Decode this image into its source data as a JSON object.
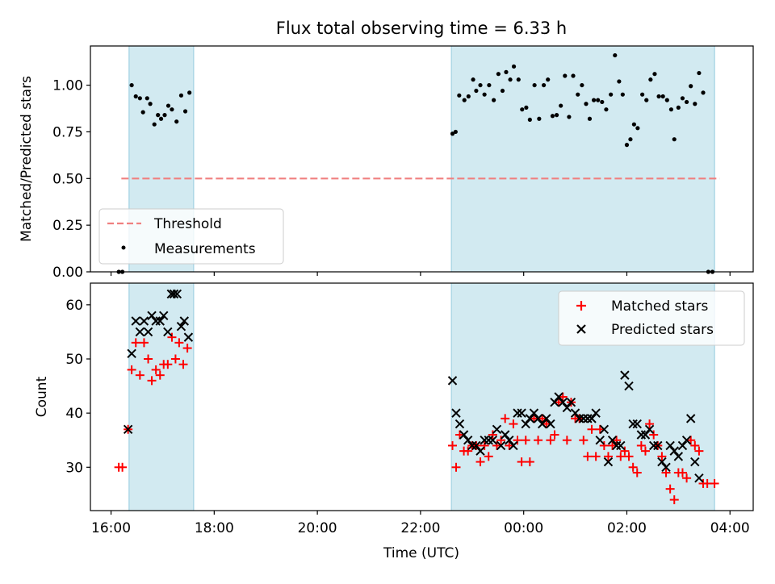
{
  "title": "Flux total observing time = 6.33 h",
  "xlabel": "Time (UTC)",
  "x_ticks": [
    "16:00",
    "18:00",
    "20:00",
    "22:00",
    "00:00",
    "02:00",
    "04:00"
  ],
  "top": {
    "ylabel": "Matched/Predicted stars",
    "y_ticks": [
      "0.00",
      "0.25",
      "0.50",
      "0.75",
      "1.00"
    ],
    "legend": [
      "Threshold",
      "Measurements"
    ]
  },
  "bottom": {
    "ylabel": "Count",
    "y_ticks": [
      "30",
      "40",
      "50",
      "60"
    ],
    "legend": [
      "Matched stars",
      "Predicted stars"
    ]
  },
  "colors": {
    "shade": "#add8e6",
    "threshold": "#f08080",
    "matched": "#ff0000",
    "predicted": "#000000",
    "measure": "#000000"
  },
  "chart_data": [
    {
      "type": "scatter",
      "title": "Flux total observing time = 6.33 h",
      "xlabel": "",
      "ylabel": "Matched/Predicted stars",
      "x_unit": "hours since 16:00 UTC",
      "xlim": [
        -0.4,
        12.45
      ],
      "ylim": [
        0,
        1.21
      ],
      "shaded_intervals": [
        [
          0.35,
          1.6
        ],
        [
          6.6,
          11.7
        ]
      ],
      "threshold": {
        "x": [
          0.2,
          11.8
        ],
        "y": 0.5
      },
      "series": [
        {
          "name": "Measurements",
          "points": [
            [
              0.15,
              0.0
            ],
            [
              0.22,
              0.0
            ],
            [
              0.4,
              1.0
            ],
            [
              0.48,
              0.94
            ],
            [
              0.56,
              0.93
            ],
            [
              0.62,
              0.855
            ],
            [
              0.7,
              0.93
            ],
            [
              0.76,
              0.9
            ],
            [
              0.84,
              0.79
            ],
            [
              0.91,
              0.84
            ],
            [
              0.97,
              0.82
            ],
            [
              1.04,
              0.84
            ],
            [
              1.11,
              0.89
            ],
            [
              1.18,
              0.87
            ],
            [
              1.27,
              0.805
            ],
            [
              1.36,
              0.945
            ],
            [
              1.44,
              0.86
            ],
            [
              1.52,
              0.96
            ],
            [
              6.62,
              0.74
            ],
            [
              6.68,
              0.75
            ],
            [
              6.75,
              0.945
            ],
            [
              6.85,
              0.92
            ],
            [
              6.93,
              0.94
            ],
            [
              7.02,
              1.03
            ],
            [
              7.08,
              0.97
            ],
            [
              7.16,
              1.0
            ],
            [
              7.24,
              0.95
            ],
            [
              7.33,
              1.0
            ],
            [
              7.42,
              0.92
            ],
            [
              7.51,
              1.06
            ],
            [
              7.59,
              0.97
            ],
            [
              7.66,
              1.07
            ],
            [
              7.74,
              1.03
            ],
            [
              7.81,
              1.1
            ],
            [
              7.9,
              1.03
            ],
            [
              7.97,
              0.87
            ],
            [
              8.05,
              0.88
            ],
            [
              8.12,
              0.815
            ],
            [
              8.21,
              1.0
            ],
            [
              8.3,
              0.82
            ],
            [
              8.39,
              1.0
            ],
            [
              8.47,
              1.03
            ],
            [
              8.56,
              0.835
            ],
            [
              8.64,
              0.84
            ],
            [
              8.72,
              0.89
            ],
            [
              8.8,
              1.05
            ],
            [
              8.88,
              0.83
            ],
            [
              8.96,
              1.05
            ],
            [
              9.05,
              0.95
            ],
            [
              9.13,
              1.0
            ],
            [
              9.21,
              0.9
            ],
            [
              9.28,
              0.82
            ],
            [
              9.36,
              0.92
            ],
            [
              9.44,
              0.92
            ],
            [
              9.52,
              0.91
            ],
            [
              9.6,
              0.87
            ],
            [
              9.69,
              0.95
            ],
            [
              9.77,
              1.16
            ],
            [
              9.85,
              1.02
            ],
            [
              9.92,
              0.95
            ],
            [
              10.0,
              0.68
            ],
            [
              10.07,
              0.71
            ],
            [
              10.14,
              0.79
            ],
            [
              10.21,
              0.77
            ],
            [
              10.3,
              0.95
            ],
            [
              10.38,
              0.92
            ],
            [
              10.46,
              1.03
            ],
            [
              10.54,
              1.06
            ],
            [
              10.62,
              0.94
            ],
            [
              10.7,
              0.94
            ],
            [
              10.78,
              0.92
            ],
            [
              10.86,
              0.87
            ],
            [
              10.92,
              0.71
            ],
            [
              11.0,
              0.88
            ],
            [
              11.08,
              0.93
            ],
            [
              11.16,
              0.91
            ],
            [
              11.24,
              0.995
            ],
            [
              11.32,
              0.9
            ],
            [
              11.4,
              1.065
            ],
            [
              11.48,
              0.96
            ],
            [
              11.58,
              0.0
            ],
            [
              11.66,
              0.0
            ]
          ]
        }
      ]
    },
    {
      "type": "scatter",
      "title": "",
      "xlabel": "Time (UTC)",
      "ylabel": "Count",
      "x_unit": "hours since 16:00 UTC",
      "xlim": [
        -0.4,
        12.45
      ],
      "ylim": [
        22,
        64
      ],
      "shaded_intervals": [
        [
          0.35,
          1.6
        ],
        [
          6.6,
          11.7
        ]
      ],
      "series": [
        {
          "name": "Matched stars",
          "points": [
            [
              0.15,
              30
            ],
            [
              0.22,
              30
            ],
            [
              0.33,
              37
            ],
            [
              0.4,
              48
            ],
            [
              0.48,
              53
            ],
            [
              0.56,
              47
            ],
            [
              0.64,
              53
            ],
            [
              0.72,
              50
            ],
            [
              0.79,
              46
            ],
            [
              0.87,
              48
            ],
            [
              0.95,
              47
            ],
            [
              1.02,
              49
            ],
            [
              1.1,
              49
            ],
            [
              1.18,
              54
            ],
            [
              1.25,
              50
            ],
            [
              1.32,
              53
            ],
            [
              1.4,
              49
            ],
            [
              1.48,
              52
            ],
            [
              6.62,
              34
            ],
            [
              6.69,
              30
            ],
            [
              6.76,
              36
            ],
            [
              6.84,
              33
            ],
            [
              6.92,
              33
            ],
            [
              7.0,
              34
            ],
            [
              7.08,
              34
            ],
            [
              7.16,
              31
            ],
            [
              7.24,
              34
            ],
            [
              7.32,
              32
            ],
            [
              7.4,
              36
            ],
            [
              7.48,
              34
            ],
            [
              7.56,
              35
            ],
            [
              7.64,
              39
            ],
            [
              7.72,
              34
            ],
            [
              7.8,
              38
            ],
            [
              7.88,
              35
            ],
            [
              7.96,
              31
            ],
            [
              8.04,
              35
            ],
            [
              8.12,
              31
            ],
            [
              8.2,
              39
            ],
            [
              8.28,
              35
            ],
            [
              8.36,
              39
            ],
            [
              8.44,
              38
            ],
            [
              8.52,
              35
            ],
            [
              8.6,
              36
            ],
            [
              8.68,
              42
            ],
            [
              8.76,
              43
            ],
            [
              8.84,
              35
            ],
            [
              8.92,
              42
            ],
            [
              9.0,
              39
            ],
            [
              9.08,
              39
            ],
            [
              9.16,
              35
            ],
            [
              9.24,
              32
            ],
            [
              9.32,
              37
            ],
            [
              9.4,
              32
            ],
            [
              9.48,
              37
            ],
            [
              9.56,
              34
            ],
            [
              9.64,
              32
            ],
            [
              9.72,
              34
            ],
            [
              9.8,
              35
            ],
            [
              9.88,
              32
            ],
            [
              9.96,
              33
            ],
            [
              10.04,
              32
            ],
            [
              10.12,
              30
            ],
            [
              10.2,
              29
            ],
            [
              10.28,
              34
            ],
            [
              10.36,
              33
            ],
            [
              10.44,
              38
            ],
            [
              10.52,
              36
            ],
            [
              10.6,
              34
            ],
            [
              10.68,
              32
            ],
            [
              10.76,
              29
            ],
            [
              10.84,
              26
            ],
            [
              10.92,
              24
            ],
            [
              11.0,
              29
            ],
            [
              11.08,
              29
            ],
            [
              11.16,
              28
            ],
            [
              11.24,
              35
            ],
            [
              11.32,
              34
            ],
            [
              11.4,
              33
            ],
            [
              11.48,
              27
            ],
            [
              11.56,
              27
            ],
            [
              11.7,
              27
            ]
          ]
        },
        {
          "name": "Predicted stars",
          "points": [
            [
              0.33,
              37
            ],
            [
              0.4,
              51
            ],
            [
              0.48,
              57
            ],
            [
              0.56,
              55
            ],
            [
              0.64,
              57
            ],
            [
              0.72,
              55
            ],
            [
              0.79,
              58
            ],
            [
              0.87,
              57
            ],
            [
              0.95,
              57
            ],
            [
              1.02,
              58
            ],
            [
              1.1,
              55
            ],
            [
              1.17,
              62
            ],
            [
              1.22,
              62
            ],
            [
              1.28,
              62
            ],
            [
              1.36,
              56
            ],
            [
              1.42,
              57
            ],
            [
              1.5,
              54
            ],
            [
              6.62,
              46
            ],
            [
              6.69,
              40
            ],
            [
              6.76,
              38
            ],
            [
              6.84,
              36
            ],
            [
              6.92,
              35
            ],
            [
              7.0,
              34
            ],
            [
              7.08,
              34
            ],
            [
              7.16,
              33
            ],
            [
              7.24,
              35
            ],
            [
              7.32,
              35
            ],
            [
              7.4,
              35
            ],
            [
              7.48,
              37
            ],
            [
              7.56,
              34
            ],
            [
              7.64,
              36
            ],
            [
              7.72,
              35
            ],
            [
              7.8,
              34
            ],
            [
              7.88,
              40
            ],
            [
              7.96,
              40
            ],
            [
              8.04,
              38
            ],
            [
              8.12,
              39
            ],
            [
              8.2,
              40
            ],
            [
              8.28,
              39
            ],
            [
              8.36,
              38
            ],
            [
              8.44,
              39
            ],
            [
              8.52,
              38
            ],
            [
              8.6,
              42
            ],
            [
              8.68,
              43
            ],
            [
              8.76,
              42
            ],
            [
              8.84,
              41
            ],
            [
              8.92,
              42
            ],
            [
              9.0,
              40
            ],
            [
              9.08,
              39
            ],
            [
              9.16,
              39
            ],
            [
              9.24,
              39
            ],
            [
              9.32,
              39
            ],
            [
              9.4,
              40
            ],
            [
              9.48,
              35
            ],
            [
              9.56,
              37
            ],
            [
              9.64,
              31
            ],
            [
              9.72,
              35
            ],
            [
              9.8,
              34
            ],
            [
              9.88,
              34
            ],
            [
              9.96,
              47
            ],
            [
              10.04,
              45
            ],
            [
              10.12,
              38
            ],
            [
              10.2,
              38
            ],
            [
              10.28,
              36
            ],
            [
              10.36,
              36
            ],
            [
              10.44,
              37
            ],
            [
              10.52,
              34
            ],
            [
              10.6,
              34
            ],
            [
              10.68,
              31
            ],
            [
              10.76,
              30
            ],
            [
              10.84,
              34
            ],
            [
              10.92,
              33
            ],
            [
              11.0,
              32
            ],
            [
              11.08,
              34
            ],
            [
              11.16,
              35
            ],
            [
              11.24,
              39
            ],
            [
              11.32,
              31
            ],
            [
              11.4,
              28
            ]
          ]
        }
      ]
    }
  ]
}
